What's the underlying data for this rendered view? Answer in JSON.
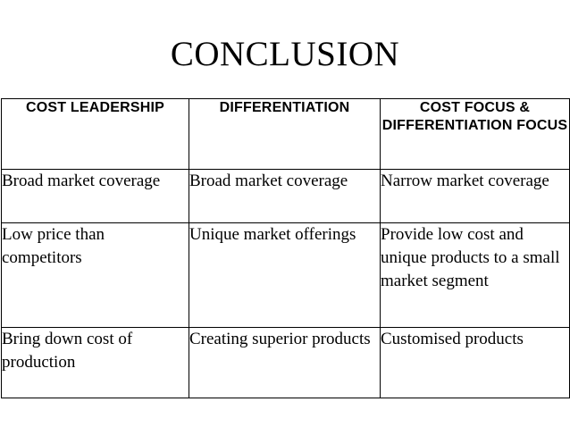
{
  "slide": {
    "title": "CONCLUSION"
  },
  "table": {
    "headers": [
      "COST LEADERSHIP",
      "DIFFERENTIATION",
      "COST FOCUS & DIFFERENTIATION FOCUS"
    ],
    "rows": [
      [
        "Broad market coverage",
        "Broad market coverage",
        "Narrow market coverage"
      ],
      [
        "Low price than competitors",
        "Unique market offerings",
        "Provide low cost and unique products to a small market segment"
      ],
      [
        "Bring down cost of production",
        "Creating superior products",
        "Customised products"
      ]
    ]
  }
}
